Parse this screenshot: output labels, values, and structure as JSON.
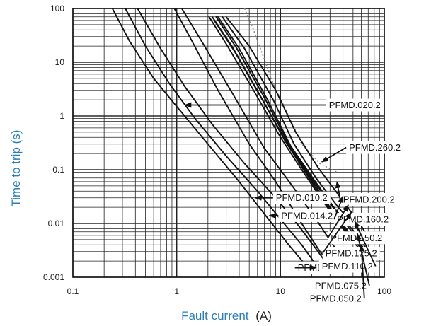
{
  "chart_data": {
    "type": "line",
    "x_scale": "log",
    "y_scale": "log",
    "xlim": [
      0.1,
      100
    ],
    "ylim": [
      0.001,
      100
    ],
    "x_tick_labels": [
      "0.1",
      "1",
      "10",
      "100"
    ],
    "y_tick_labels": [
      "0.001",
      "0.01",
      "0.1",
      "1",
      "10",
      "100"
    ],
    "xlabel_part1": "Fault current",
    "xlabel_part2": "(A)",
    "ylabel": "Time to trip (s)",
    "grid": true,
    "colors": {
      "axis_label_accent": "#2a7fc1",
      "curves": "#111111",
      "grid": "#222222",
      "dotted_envelope": "#888888"
    },
    "series": [
      {
        "name": "PFMD.010.2",
        "points": [
          [
            0.24,
            100
          ],
          [
            0.35,
            25
          ],
          [
            0.6,
            5
          ],
          [
            1.0,
            1.5
          ],
          [
            2.0,
            0.3
          ],
          [
            4.0,
            0.06
          ],
          [
            7.0,
            0.015
          ],
          [
            12.0,
            0.004
          ],
          [
            17.0,
            0.0018
          ]
        ]
      },
      {
        "name": "PFMD.014.2",
        "points": [
          [
            0.32,
            100
          ],
          [
            0.5,
            20
          ],
          [
            0.85,
            4
          ],
          [
            1.5,
            0.9
          ],
          [
            3.0,
            0.18
          ],
          [
            6.0,
            0.04
          ],
          [
            10.0,
            0.012
          ],
          [
            16.0,
            0.004
          ],
          [
            23.0,
            0.0015
          ]
        ]
      },
      {
        "name": "PFMD.020.2",
        "points": [
          [
            0.42,
            100
          ],
          [
            0.7,
            18
          ],
          [
            1.2,
            3.5
          ],
          [
            2.2,
            0.7
          ],
          [
            4.5,
            0.13
          ],
          [
            9.0,
            0.03
          ],
          [
            15.0,
            0.009
          ],
          [
            23.0,
            0.003
          ],
          [
            29.0,
            0.0016
          ]
        ]
      },
      {
        "name": "PFMD.030.2",
        "points": [
          [
            0.95,
            100
          ],
          [
            1.4,
            25
          ],
          [
            2.5,
            3
          ],
          [
            5.0,
            0.3
          ],
          [
            9.0,
            0.06
          ],
          [
            16.0,
            0.01
          ],
          [
            24.0,
            0.003
          ],
          [
            33.0,
            0.0015
          ]
        ]
      },
      {
        "name": "PFMD.050.2",
        "points": [
          [
            1.12,
            100
          ],
          [
            1.8,
            22
          ],
          [
            3.5,
            2.5
          ],
          [
            7.0,
            0.25
          ],
          [
            13.0,
            0.05
          ],
          [
            22.0,
            0.012
          ],
          [
            32.0,
            0.004
          ],
          [
            45.0,
            0.0016
          ]
        ]
      },
      {
        "name": "PFMD.075.2",
        "points": [
          [
            2.05,
            70
          ],
          [
            3.0,
            22
          ],
          [
            5.5,
            3
          ],
          [
            10.0,
            0.4
          ],
          [
            16.0,
            0.1
          ],
          [
            26.0,
            0.025
          ],
          [
            40.0,
            0.008
          ],
          [
            62.0,
            0.0028
          ]
        ]
      },
      {
        "name": "PFMD.110.2",
        "points": [
          [
            2.2,
            70
          ],
          [
            3.4,
            20
          ],
          [
            6.3,
            2.5
          ],
          [
            11.0,
            0.35
          ],
          [
            18.0,
            0.08
          ],
          [
            28.0,
            0.022
          ],
          [
            45.0,
            0.0065
          ],
          [
            68.0,
            0.0026
          ]
        ]
      },
      {
        "name": "PFMD.125.2",
        "points": [
          [
            2.3,
            60
          ],
          [
            3.6,
            16
          ],
          [
            6.5,
            2.2
          ],
          [
            11.5,
            0.32
          ],
          [
            19.0,
            0.075
          ],
          [
            30.0,
            0.02
          ],
          [
            48.0,
            0.006
          ],
          [
            70.0,
            0.0024
          ]
        ]
      },
      {
        "name": "PFMD.150.2",
        "points": [
          [
            2.4,
            70
          ],
          [
            3.8,
            18
          ],
          [
            7.0,
            2.2
          ],
          [
            12.0,
            0.3
          ],
          [
            20.0,
            0.07
          ],
          [
            32.0,
            0.02
          ],
          [
            52.0,
            0.006
          ],
          [
            70.0,
            0.0026
          ]
        ]
      },
      {
        "name": "PFMD.160.2",
        "points": [
          [
            2.5,
            70
          ],
          [
            4.0,
            18
          ],
          [
            7.5,
            2.0
          ],
          [
            12.5,
            0.28
          ],
          [
            21.0,
            0.065
          ],
          [
            34.0,
            0.018
          ],
          [
            55.0,
            0.006
          ],
          [
            70.0,
            0.003
          ]
        ]
      },
      {
        "name": "PFMD.200.2",
        "points": [
          [
            2.75,
            70
          ],
          [
            4.5,
            18
          ],
          [
            8.5,
            2.0
          ],
          [
            13.5,
            0.3
          ],
          [
            22.0,
            0.07
          ],
          [
            36.0,
            0.02
          ],
          [
            58.0,
            0.007
          ],
          [
            70.0,
            0.0045
          ]
        ]
      },
      {
        "name": "PFMD.260.2",
        "points": [
          [
            3.0,
            70
          ],
          [
            5.0,
            20
          ],
          [
            9.0,
            3
          ],
          [
            14.0,
            0.5
          ],
          [
            23.0,
            0.11
          ],
          [
            38.0,
            0.03
          ],
          [
            60.0,
            0.009
          ],
          [
            70.0,
            0.0055
          ]
        ]
      }
    ],
    "dotted_envelope": [
      [
        4.5,
        100
      ],
      [
        5.5,
        40
      ],
      [
        8.5,
        4
      ],
      [
        12.0,
        1.0
      ],
      [
        16.0,
        0.3
      ],
      [
        24.0,
        0.13
      ],
      [
        35.0,
        0.09
      ]
    ],
    "annotations": [
      {
        "label": "PFMD.020.2",
        "box": [
          52,
          1.6
        ],
        "arrow_to": [
          1.2,
          1.6
        ]
      },
      {
        "label": "PFMD.010.2",
        "box": [
          16,
          0.03
        ],
        "arrow_to": [
          5.7,
          0.03
        ]
      },
      {
        "label": "PFMD.014.2",
        "box": [
          18,
          0.014
        ],
        "arrow_to": [
          7.8,
          0.014
        ]
      },
      {
        "label": "PFMD.030.2",
        "box": [
          26,
          0.0015
        ],
        "arrow_to": [
          22.0,
          0.0015
        ]
      },
      {
        "label": "PFMD.260.2",
        "box": [
          81,
          0.26
        ],
        "arrow_to": [
          25.0,
          0.14
        ]
      },
      {
        "label": "PFMD.200.2",
        "box": [
          71,
          0.028
        ],
        "arrow_to": [
          35.0,
          0.06
        ]
      },
      {
        "label": "PFMD.160.2",
        "box": [
          62,
          0.012
        ],
        "arrow_to": [
          40.0,
          0.032
        ]
      },
      {
        "label": "PFMD.150.2",
        "box": [
          54,
          0.0054
        ],
        "arrow_to": [
          45.0,
          0.022
        ]
      },
      {
        "label": "PFMD.125.2",
        "box": [
          48,
          0.0028
        ],
        "arrow_to": [
          48.0,
          0.016
        ]
      },
      {
        "label": "PFMD.110.2",
        "box": [
          44,
          0.0016
        ],
        "arrow_to": [
          52.0,
          0.011
        ]
      },
      {
        "label": "PFMD.075.2",
        "box": [
          38,
          0.0007
        ],
        "arrow_to": [
          55.0,
          0.0065
        ]
      },
      {
        "label": "PFMD.050.2",
        "box": [
          34,
          0.0004
        ],
        "arrow_to": [
          60.0,
          0.004
        ]
      }
    ]
  }
}
